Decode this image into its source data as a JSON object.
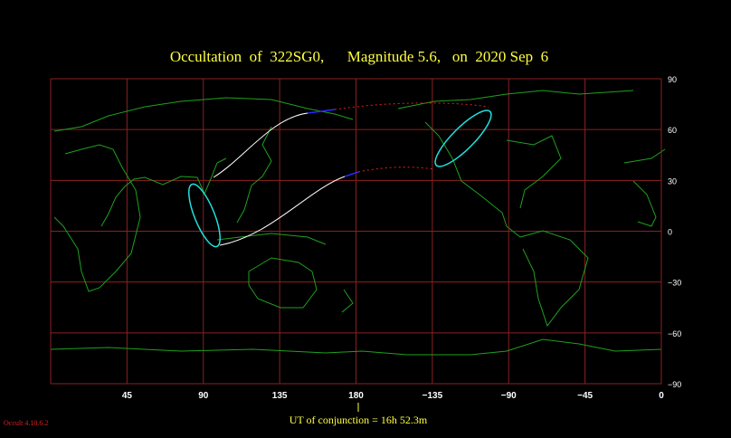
{
  "map": {
    "title": "Occultation  of  322SG0,      Magnitude 5.6,   on  2020 Sep  6",
    "x_ticks": [
      {
        "value": 45,
        "label": "45"
      },
      {
        "value": 90,
        "label": "90"
      },
      {
        "value": 135,
        "label": "135"
      },
      {
        "value": 180,
        "label": "180"
      },
      {
        "value": -135,
        "label": "−135"
      },
      {
        "value": -90,
        "label": "−90"
      },
      {
        "value": -45,
        "label": "−45"
      },
      {
        "value": 0,
        "label": "0"
      }
    ],
    "y_ticks": [
      {
        "value": 90,
        "label": "90"
      },
      {
        "value": 60,
        "label": "60"
      },
      {
        "value": 30,
        "label": "30"
      },
      {
        "value": 0,
        "label": "0"
      },
      {
        "value": -30,
        "label": "−30"
      },
      {
        "value": -60,
        "label": "−60"
      },
      {
        "value": -90,
        "label": "−90"
      }
    ],
    "conjunction_label": "UT of conjunction = 16h 52.3m",
    "version": "Occult 4.10.6.2"
  }
}
